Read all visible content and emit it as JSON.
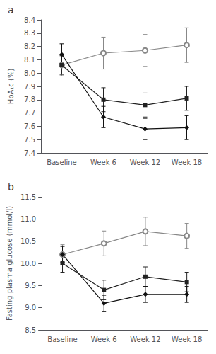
{
  "chart_data": [
    {
      "type": "line",
      "title": "a",
      "ylabel": "HbA₁c (%)",
      "categories": [
        "Baseline",
        "Week 6",
        "Week 12",
        "Week 18"
      ],
      "ylim": [
        7.4,
        8.4
      ],
      "yticks": [
        7.4,
        7.5,
        7.6,
        7.7,
        7.8,
        7.9,
        {
          "value": 8,
          "label": "8.0"
        },
        8.1,
        8.2,
        8.3,
        8.4
      ],
      "grid": false,
      "series": [
        {
          "color": "#888888",
          "marker": "open_circle",
          "values": [
            8.06,
            8.15,
            8.17,
            8.21
          ],
          "sem": [
            0.08,
            0.12,
            0.12,
            0.13
          ]
        },
        {
          "color": "#222222",
          "marker": "square",
          "values": [
            8.06,
            7.8,
            7.76,
            7.81
          ],
          "sem": [
            0.07,
            0.09,
            0.09,
            0.09
          ]
        },
        {
          "color": "#111111",
          "marker": "diamond",
          "values": [
            8.14,
            7.67,
            7.58,
            7.59
          ],
          "sem": [
            0.08,
            0.08,
            0.08,
            0.09
          ]
        }
      ]
    },
    {
      "type": "line",
      "title": "b",
      "ylabel": "Fasting plasma glucose (mmol/l)",
      "categories": [
        "Baseline",
        "Week 6",
        "Week 12",
        "Week 18"
      ],
      "ylim": [
        8.5,
        11.5
      ],
      "yticks": [
        8.5,
        {
          "value": 9,
          "label": "9.0"
        },
        9.5,
        {
          "value": 10,
          "label": "10.0"
        },
        10.5,
        {
          "value": 11,
          "label": "11.0"
        },
        11.5
      ],
      "grid": false,
      "series": [
        {
          "color": "#888888",
          "marker": "open_circle",
          "values": [
            10.2,
            10.45,
            10.72,
            10.62
          ],
          "sem": [
            0.22,
            0.28,
            0.32,
            0.28
          ]
        },
        {
          "color": "#222222",
          "marker": "square",
          "values": [
            10.0,
            9.4,
            9.7,
            9.58
          ],
          "sem": [
            0.2,
            0.22,
            0.22,
            0.22
          ]
        },
        {
          "color": "#111111",
          "marker": "diamond",
          "values": [
            10.2,
            9.1,
            9.3,
            9.3
          ],
          "sem": [
            0.18,
            0.18,
            0.18,
            0.18
          ]
        }
      ]
    }
  ]
}
